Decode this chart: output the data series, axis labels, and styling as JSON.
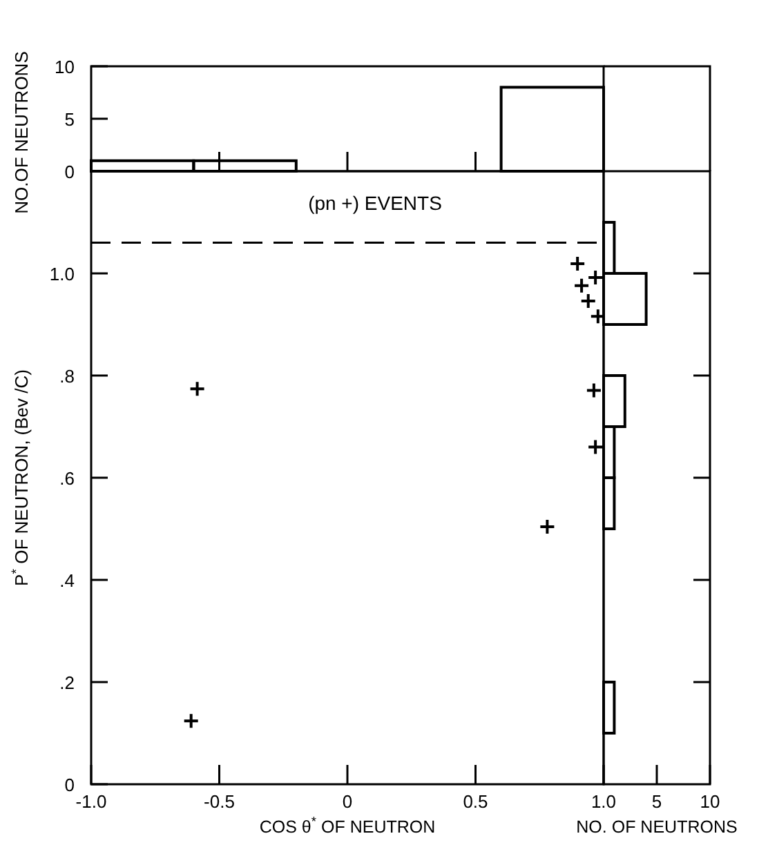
{
  "chart_data": [
    {
      "type": "histogram",
      "ylabel": "NO.OF NEUTRONS",
      "bins": [
        -1.0,
        -0.6,
        -0.2,
        0.2,
        0.6,
        1.0
      ],
      "values": [
        1,
        1,
        0,
        0,
        8
      ],
      "color": "#000000",
      "xlim": [
        -1,
        1
      ],
      "xticks": [
        {
          "value": -0.5,
          "label": null
        },
        {
          "value": 0,
          "label": null
        },
        {
          "value": 0.5,
          "label": null
        }
      ],
      "ylim": [
        0,
        10
      ],
      "yticks": [
        0,
        5,
        10
      ],
      "tick_labels": "y"
    },
    {
      "type": "scatter",
      "xlabel": "COS θ$^{*}$ OF NEUTRON",
      "ylabel": "P$^{*}$ OF NEUTRON, (Bev /C)",
      "annotations": [
        "(pn +) EVENTS"
      ],
      "marker": "cross",
      "color": "#000000",
      "x": [
        -0.61,
        -0.586,
        0.78,
        0.898,
        0.968,
        0.914,
        0.94,
        0.978,
        0.962,
        0.968
      ],
      "values": [
        0.124,
        0.774,
        0.504,
        1.019,
        0.992,
        0.976,
        0.946,
        0.916,
        0.771,
        0.66
      ],
      "xlim": [
        -1,
        1
      ],
      "xticks": [
        {
          "value": -1,
          "label": "-1.0"
        },
        -0.5,
        0,
        0.5,
        {
          "value": 1,
          "label": "1.0"
        }
      ],
      "ylim": [
        0,
        1.2
      ],
      "yticks": [
        0,
        {
          "value": 0.2,
          "label": ".2"
        },
        {
          "value": 0.4,
          "label": ".4"
        },
        {
          "value": 0.6,
          "label": ".6"
        },
        {
          "value": 0.8,
          "label": ".8"
        },
        {
          "value": 1.0,
          "label": "1.0"
        }
      ],
      "ref_lines": [
        {
          "axis": "y",
          "value": 1.06,
          "line_style": "dashed",
          "color": "#000000"
        }
      ]
    },
    {
      "type": "histogram",
      "orientation": "horizontal",
      "xlabel": "NO. OF NEUTRONS",
      "bins": [
        0,
        0.1,
        0.2,
        0.3,
        0.4,
        0.5,
        0.6,
        0.7,
        0.8,
        0.9,
        1.0,
        1.1
      ],
      "values": [
        0,
        1,
        0,
        0,
        0,
        1,
        1,
        2,
        0,
        4,
        1
      ],
      "color": "#000000",
      "xlim": [
        0,
        10
      ],
      "xticks": [
        {
          "value": 0,
          "label": null
        },
        5,
        10
      ],
      "ylim": [
        0,
        1.2
      ],
      "yticks": [
        {
          "value": 0.2,
          "label": null
        },
        {
          "value": 0.4,
          "label": null
        },
        {
          "value": 0.6,
          "label": null
        },
        {
          "value": 0.8,
          "label": null
        },
        {
          "value": 1.0,
          "label": null
        }
      ],
      "tick_labels": "x"
    }
  ]
}
